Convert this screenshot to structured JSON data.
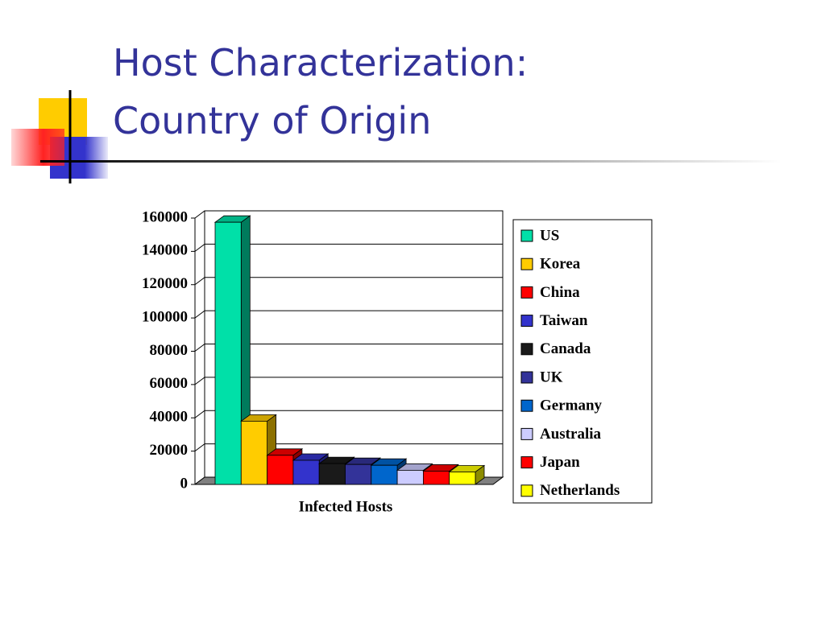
{
  "slide": {
    "title_lines": [
      "Host Characterization:",
      "Country of Origin"
    ]
  },
  "chart_data": {
    "type": "bar3d",
    "categories": [
      "Infected Hosts"
    ],
    "series": [
      {
        "name": "US",
        "color": "#00e0a8",
        "values": [
          157500
        ]
      },
      {
        "name": "Korea",
        "color": "#ffcc00",
        "values": [
          38000
        ]
      },
      {
        "name": "China",
        "color": "#ff0000",
        "values": [
          17500
        ]
      },
      {
        "name": "Taiwan",
        "color": "#3333cc",
        "values": [
          14500
        ]
      },
      {
        "name": "Canada",
        "color": "#1a1a1a",
        "values": [
          12500
        ]
      },
      {
        "name": "UK",
        "color": "#333399",
        "values": [
          12000
        ]
      },
      {
        "name": "Germany",
        "color": "#0066cc",
        "values": [
          11500
        ]
      },
      {
        "name": "Australia",
        "color": "#ccccff",
        "values": [
          8500
        ]
      },
      {
        "name": "Japan",
        "color": "#ff0000",
        "values": [
          8000
        ]
      },
      {
        "name": "Netherlands",
        "color": "#ffff00",
        "values": [
          7500
        ]
      }
    ],
    "ylim": [
      0,
      160000
    ],
    "yticks": [
      0,
      20000,
      40000,
      60000,
      80000,
      100000,
      120000,
      140000,
      160000
    ],
    "grid": true,
    "legend": "right"
  }
}
